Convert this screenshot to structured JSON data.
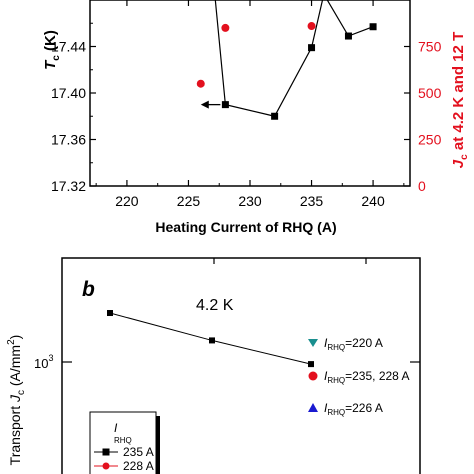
{
  "chart_data": [
    {
      "type": "scatter",
      "panel": "a",
      "xlabel": "Heating Current of RHQ (A)",
      "ylabel_main": "T",
      "ylabel_sub": "c",
      "ylabel_tail": " (K)",
      "y2label": "J",
      "y2label_sub": "c",
      "y2label_tail": " at 4.2 K and 12 T",
      "xlim": [
        217,
        243
      ],
      "ylim": [
        17.32,
        17.48
      ],
      "y2lim": [
        0,
        1000
      ],
      "xticks": [
        220,
        225,
        230,
        235,
        240
      ],
      "yticks": [
        17.32,
        17.36,
        17.4,
        17.44
      ],
      "ytick_labels": [
        "17.32",
        "17.36",
        "17.40",
        "17.44"
      ],
      "y2ticks": [
        0,
        250,
        500,
        750
      ],
      "series": [
        {
          "axis": "left",
          "marker": "square",
          "color": "#000000",
          "x": [
            227,
            228,
            232,
            235,
            236,
            238,
            240
          ],
          "y": [
            17.5,
            17.39,
            17.38,
            17.439,
            17.485,
            17.449,
            17.457
          ]
        },
        {
          "axis": "right",
          "marker": "circle",
          "color": "#e3101e",
          "x": [
            226,
            228,
            235
          ],
          "y": [
            550,
            850,
            860
          ]
        }
      ],
      "arrow": {
        "x_from": 228,
        "x_to": 226,
        "y": 17.39
      }
    },
    {
      "type": "line",
      "panel": "b",
      "panel_label": "b",
      "annotation": "4.2 K",
      "ylabel": "Transport ",
      "ylabel_j": "J",
      "ylabel_sub": "c",
      "ylabel_tail": " (A/mm",
      "ylabel_sup": "2",
      "ylabel_close": ")",
      "ytick_label_base": "10",
      "ytick_label_exp": "3",
      "series": [
        {
          "name": "235 A",
          "marker": "square",
          "color": "#000000",
          "y": [
            1600,
            1230,
            980
          ]
        }
      ],
      "points": [
        {
          "label_main": "I",
          "label_sub": "RHQ",
          "label_tail": "=220 A",
          "marker": "triangle-down",
          "color": "#1a8f8f"
        },
        {
          "label_main": "I",
          "label_sub": "RHQ",
          "label_tail": "=235, 228 A",
          "marker": "circle",
          "color": "#e3101e"
        },
        {
          "label_main": "I",
          "label_sub": "RHQ",
          "label_tail": "=226 A",
          "marker": "triangle-up",
          "color": "#1a1ad0"
        }
      ],
      "legend": {
        "title_main": "I",
        "title_sub": "RHQ",
        "entries": [
          {
            "label": "235 A",
            "marker": "square",
            "color": "#000000"
          },
          {
            "label": "228 A",
            "marker": "circle",
            "color": "#e3101e"
          }
        ]
      }
    }
  ]
}
